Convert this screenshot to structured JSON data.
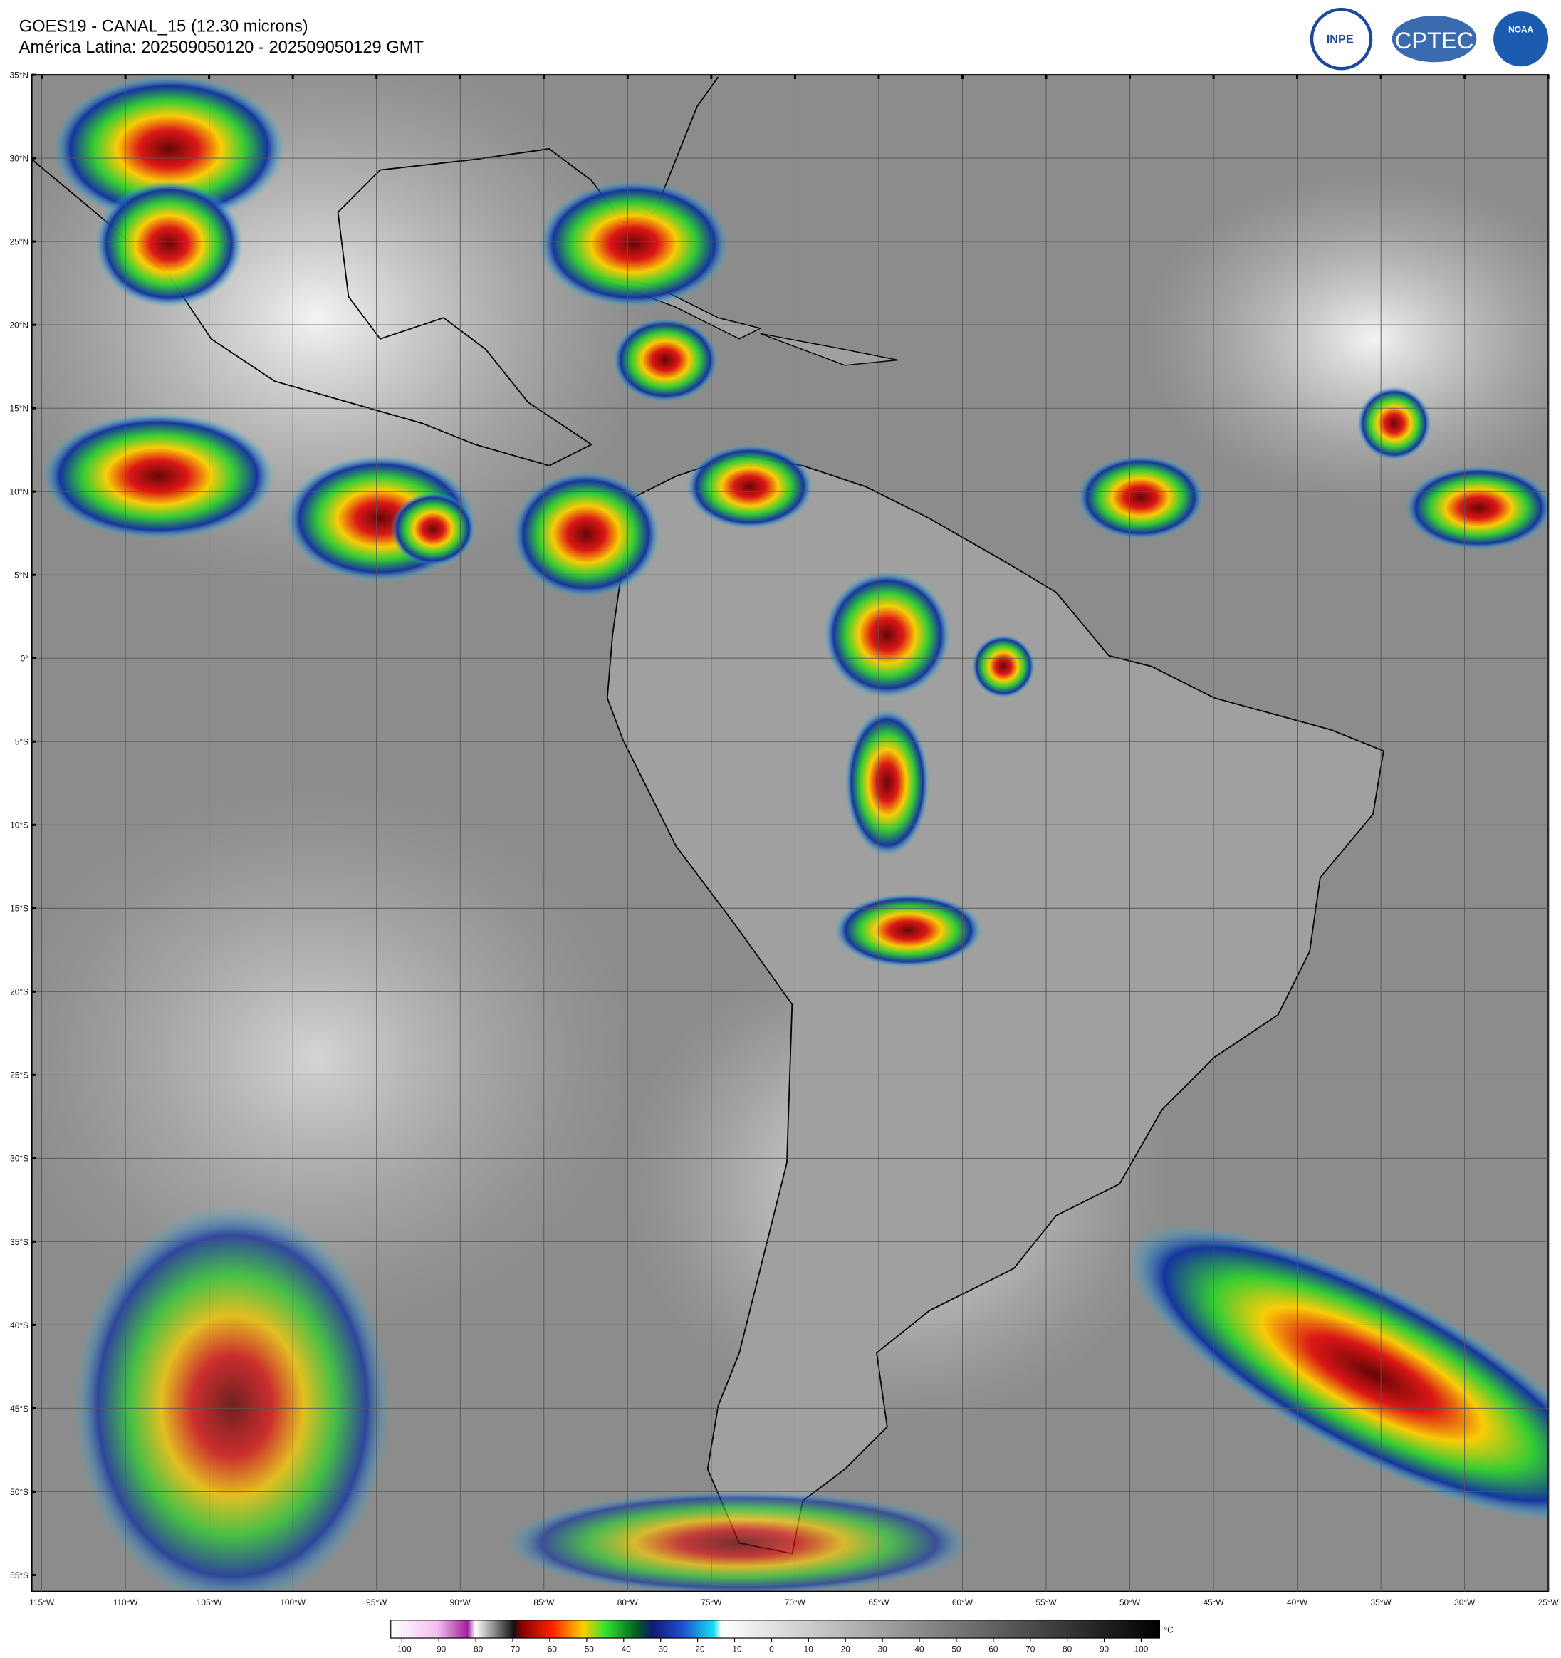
{
  "header": {
    "title": "GOES19 - CANAL_15 (12.30 microns)",
    "subtitle": "América Latina: 202509050120 - 202509050129 GMT"
  },
  "logos": [
    "INPE",
    "CPTEC",
    "NOAA"
  ],
  "map": {
    "xlim": [
      -115.6,
      -25
    ],
    "ylim": [
      -56,
      35
    ],
    "xticks": [
      {
        "value": -115,
        "label": "115°W"
      },
      {
        "value": -110,
        "label": "110°W"
      },
      {
        "value": -105,
        "label": "105°W"
      },
      {
        "value": -100,
        "label": "100°W"
      },
      {
        "value": -95,
        "label": "95°W"
      },
      {
        "value": -90,
        "label": "90°W"
      },
      {
        "value": -85,
        "label": "85°W"
      },
      {
        "value": -80,
        "label": "80°W"
      },
      {
        "value": -75,
        "label": "75°W"
      },
      {
        "value": -70,
        "label": "70°W"
      },
      {
        "value": -65,
        "label": "65°W"
      },
      {
        "value": -60,
        "label": "60°W"
      },
      {
        "value": -55,
        "label": "55°W"
      },
      {
        "value": -50,
        "label": "50°W"
      },
      {
        "value": -45,
        "label": "45°W"
      },
      {
        "value": -40,
        "label": "40°W"
      },
      {
        "value": -35,
        "label": "35°W"
      },
      {
        "value": -30,
        "label": "30°W"
      },
      {
        "value": -25,
        "label": "25°W"
      }
    ],
    "yticks": [
      {
        "value": 35,
        "label": "35°N"
      },
      {
        "value": 30,
        "label": "30°N"
      },
      {
        "value": 25,
        "label": "25°N"
      },
      {
        "value": 20,
        "label": "20°N"
      },
      {
        "value": 15,
        "label": "15°N"
      },
      {
        "value": 10,
        "label": "10°N"
      },
      {
        "value": 5,
        "label": "5°N"
      },
      {
        "value": 0,
        "label": "0°"
      },
      {
        "value": -5,
        "label": "5°S"
      },
      {
        "value": -10,
        "label": "10°S"
      },
      {
        "value": -15,
        "label": "15°S"
      },
      {
        "value": -20,
        "label": "20°S"
      },
      {
        "value": -25,
        "label": "25°S"
      },
      {
        "value": -30,
        "label": "30°S"
      },
      {
        "value": -35,
        "label": "35°S"
      },
      {
        "value": -40,
        "label": "40°S"
      },
      {
        "value": -45,
        "label": "45°S"
      },
      {
        "value": -50,
        "label": "50°S"
      },
      {
        "value": -55,
        "label": "55°S"
      }
    ]
  },
  "colorbar": {
    "unit": "°C",
    "clim": [
      -103,
      105
    ],
    "ticks": [
      {
        "value": -100,
        "label": "−100"
      },
      {
        "value": -90,
        "label": "−90"
      },
      {
        "value": -80,
        "label": "−80"
      },
      {
        "value": -70,
        "label": "−70"
      },
      {
        "value": -60,
        "label": "−60"
      },
      {
        "value": -50,
        "label": "−50"
      },
      {
        "value": -40,
        "label": "−40"
      },
      {
        "value": -30,
        "label": "−30"
      },
      {
        "value": -20,
        "label": "−20"
      },
      {
        "value": -10,
        "label": "−10"
      },
      0,
      10,
      20,
      30,
      40,
      50,
      60,
      70,
      80,
      90,
      100
    ]
  }
}
